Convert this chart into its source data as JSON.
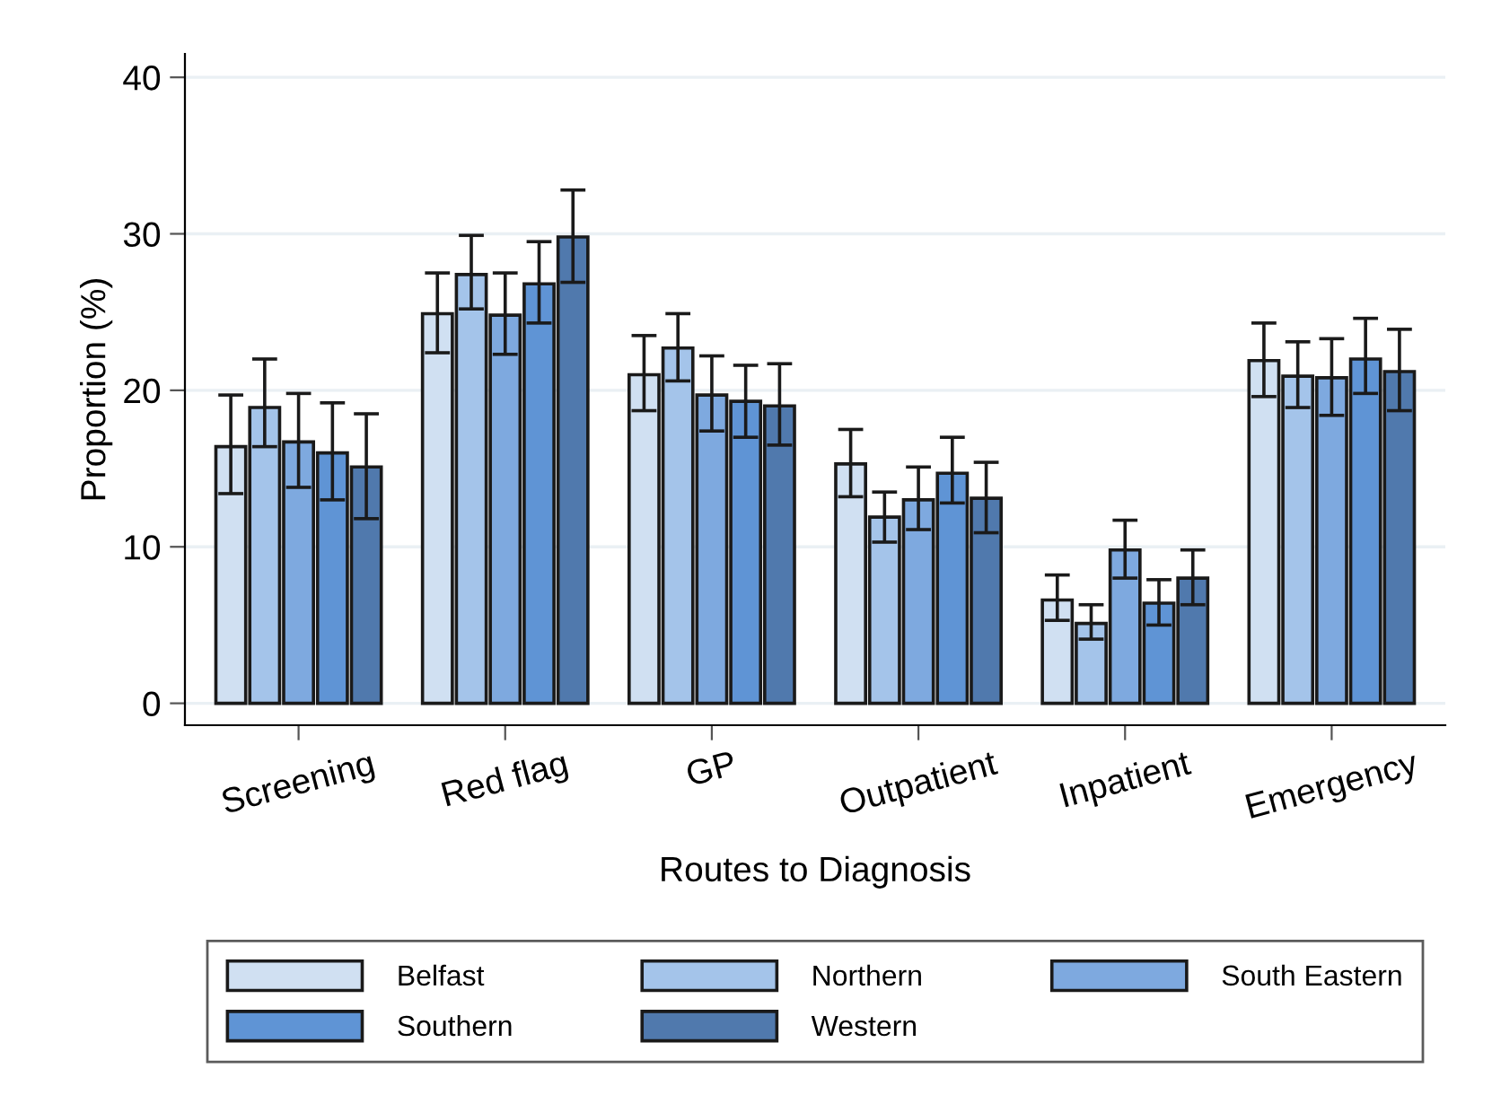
{
  "chart_data": {
    "type": "bar",
    "xlabel": "Routes to Diagnosis",
    "ylabel": "Proportion (%)",
    "categories": [
      "Screening",
      "Red flag",
      "GP",
      "Outpatient",
      "Inpatient",
      "Emergency"
    ],
    "ylim": [
      -1.4,
      41.5
    ],
    "yticks": [
      0,
      10,
      20,
      30,
      40
    ],
    "grid": "y",
    "legend": "bottom",
    "series": [
      {
        "name": "Belfast",
        "color": "#d0e0f2",
        "values": [
          16.4,
          24.9,
          21.0,
          15.3,
          6.6,
          21.9
        ],
        "errors": [
          [
            13.4,
            19.7
          ],
          [
            22.4,
            27.5
          ],
          [
            18.7,
            23.5
          ],
          [
            13.2,
            17.5
          ],
          [
            5.3,
            8.2
          ],
          [
            19.6,
            24.3
          ]
        ]
      },
      {
        "name": "Northern",
        "color": "#a4c4ea",
        "values": [
          18.9,
          27.4,
          22.7,
          11.9,
          5.1,
          20.9
        ],
        "errors": [
          [
            16.4,
            22.0
          ],
          [
            25.2,
            29.9
          ],
          [
            20.6,
            24.9
          ],
          [
            10.3,
            13.5
          ],
          [
            4.1,
            6.3
          ],
          [
            18.9,
            23.1
          ]
        ]
      },
      {
        "name": "South Eastern",
        "color": "#7ea9df",
        "values": [
          16.7,
          24.8,
          19.7,
          13.0,
          9.8,
          20.8
        ],
        "errors": [
          [
            13.8,
            19.8
          ],
          [
            22.3,
            27.5
          ],
          [
            17.4,
            22.2
          ],
          [
            11.1,
            15.1
          ],
          [
            8.0,
            11.7
          ],
          [
            18.4,
            23.3
          ]
        ]
      },
      {
        "name": "Southern",
        "color": "#5f94d5",
        "values": [
          16.0,
          26.8,
          19.3,
          14.7,
          6.4,
          22.0
        ],
        "errors": [
          [
            13.0,
            19.2
          ],
          [
            24.3,
            29.5
          ],
          [
            17.0,
            21.6
          ],
          [
            12.8,
            17.0
          ],
          [
            5.0,
            7.9
          ],
          [
            19.8,
            24.6
          ]
        ]
      },
      {
        "name": "Western",
        "color": "#5079ad",
        "values": [
          15.1,
          29.8,
          19.0,
          13.1,
          8.0,
          21.2
        ],
        "errors": [
          [
            11.8,
            18.5
          ],
          [
            26.9,
            32.8
          ],
          [
            16.5,
            21.7
          ],
          [
            10.9,
            15.4
          ],
          [
            6.3,
            9.8
          ],
          [
            18.7,
            23.9
          ]
        ]
      }
    ]
  }
}
